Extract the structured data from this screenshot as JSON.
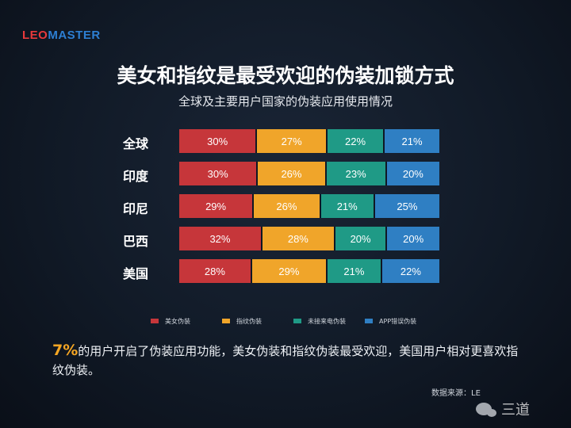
{
  "brand": {
    "logo_part1": "LEO",
    "logo_part2": "MASTER"
  },
  "colors": {
    "beauty": "#c6363a",
    "fingerprint": "#f0a52a",
    "missed_call": "#1f9a86",
    "app_error": "#2f7fc3"
  },
  "chart_data": {
    "type": "bar",
    "stacked": true,
    "orientation": "horizontal",
    "title": "美女和指纹是最受欢迎的伪装加锁方式",
    "subtitle": "全球及主要用户国家的伪装应用使用情况",
    "categories": [
      "全球",
      "印度",
      "印尼",
      "巴西",
      "美国"
    ],
    "series": [
      {
        "name": "美女伪装",
        "color": "#c6363a",
        "values": [
          30,
          30,
          29,
          32,
          28
        ],
        "labels": [
          "30%",
          "30%",
          "29%",
          "32%",
          "28%"
        ]
      },
      {
        "name": "指纹伪装",
        "color": "#f0a52a",
        "values": [
          27,
          26,
          26,
          28,
          29
        ],
        "labels": [
          "27%",
          "26%",
          "26%",
          "28%",
          "29%"
        ]
      },
      {
        "name": "未接来电伪装",
        "color": "#1f9a86",
        "values": [
          22,
          23,
          21,
          20,
          21
        ],
        "labels": [
          "22%",
          "23%",
          "21%",
          "20%",
          "21%"
        ]
      },
      {
        "name": "APP错误伪装",
        "color": "#2f7fc3",
        "values": [
          21,
          20,
          25,
          20,
          22
        ],
        "labels": [
          "21%",
          "20%",
          "25%",
          "20%",
          "22%"
        ]
      }
    ],
    "unit": "%",
    "legend_position": "bottom"
  },
  "note": {
    "highlight": "7%",
    "text": "的用户开启了伪装应用功能，美女伪装和指纹伪装最受欢迎，美国用户相对更喜欢指纹伪装。"
  },
  "source": "数据来源：LE",
  "watermark": {
    "text": "三道",
    "icon": "wechat-icon"
  }
}
